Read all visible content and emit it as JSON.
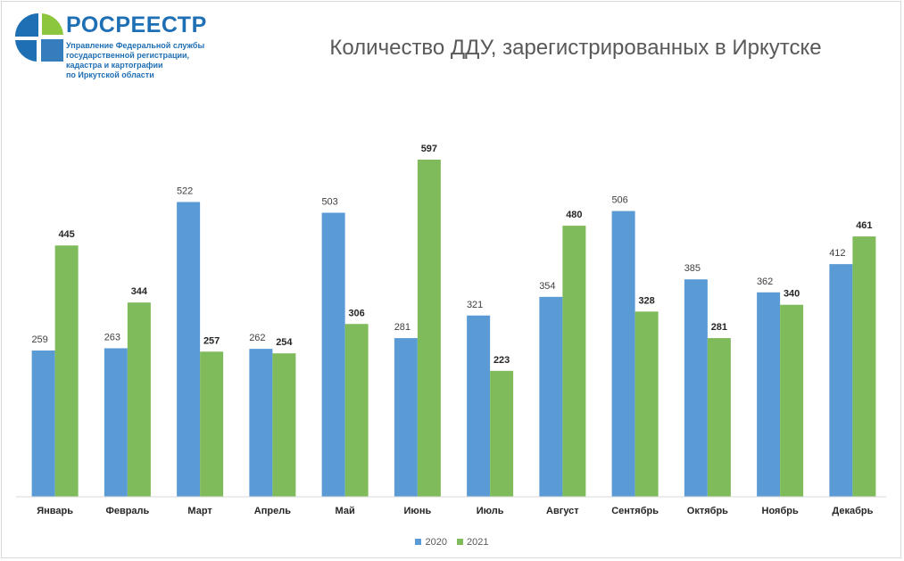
{
  "header": {
    "brand": "РОСРЕЕСТР",
    "subtitle_lines": [
      "Управление Федеральной службы",
      "государственной регистрации,",
      "кадастра и картографии",
      "по Иркутской области"
    ]
  },
  "colors": {
    "series_2020": "#5b9bd5",
    "series_2021": "#7fba5b",
    "logo_blue": "#1f6fb5",
    "logo_green": "#8cc63f"
  },
  "chart_data": {
    "type": "bar",
    "title": "Количество ДДУ, зарегистрированных в Иркутске",
    "xlabel": "",
    "ylabel": "",
    "ylim": [
      0,
      640
    ],
    "grid": false,
    "legend_position": "bottom",
    "categories": [
      "Январь",
      "Февраль",
      "Март",
      "Апрель",
      "Май",
      "Июнь",
      "Июль",
      "Август",
      "Сентябрь",
      "Октябрь",
      "Ноябрь",
      "Декабрь"
    ],
    "series": [
      {
        "name": "2020",
        "values": [
          259,
          263,
          522,
          262,
          503,
          281,
          321,
          354,
          506,
          385,
          362,
          412
        ]
      },
      {
        "name": "2021",
        "values": [
          445,
          344,
          257,
          254,
          306,
          597,
          223,
          480,
          328,
          281,
          340,
          461
        ]
      }
    ]
  }
}
